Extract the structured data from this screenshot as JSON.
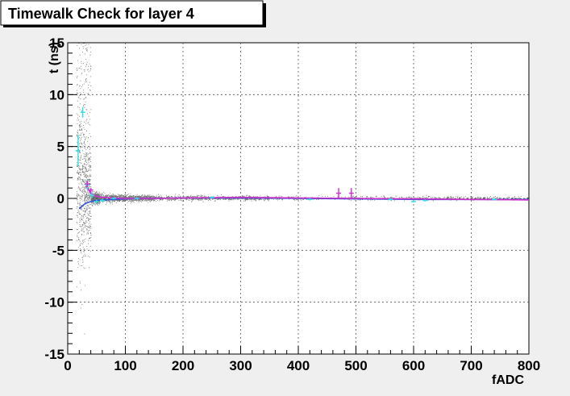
{
  "chart_data": {
    "type": "scatter",
    "title": "Timewalk Check for layer 4",
    "xlabel": "fADC",
    "ylabel": "t (ns)",
    "xlim": [
      0,
      800
    ],
    "ylim": [
      -15,
      15
    ],
    "xticks": [
      0,
      100,
      200,
      300,
      400,
      500,
      600,
      700,
      800
    ],
    "yticks": [
      -15,
      -10,
      -5,
      0,
      5,
      10,
      15
    ],
    "grid": true,
    "colors": {
      "scatter": "#000000",
      "profile_cyan": "#33e0e8",
      "profile_magenta": "#d52bd5",
      "fit_blue": "#2f4fd6",
      "fit_magenta": "#cc33cc"
    },
    "series": [
      {
        "style": "cyan-profile-markers",
        "points": [
          {
            "x": 18,
            "y": 4.6,
            "err": 1.5
          },
          {
            "x": 26,
            "y": 8.3,
            "err": 0.5
          },
          {
            "x": 34,
            "y": 1.3,
            "err": 0.5
          },
          {
            "x": 42,
            "y": 0.3,
            "err": 0.3
          },
          {
            "x": 50,
            "y": -0.3,
            "err": 0.2
          },
          {
            "x": 60,
            "y": -0.2,
            "err": 0.15
          },
          {
            "x": 80,
            "y": 0.0,
            "err": 0.1
          },
          {
            "x": 120,
            "y": 0.0,
            "err": 0.1
          },
          {
            "x": 250,
            "y": 0.1,
            "err": 0.1
          },
          {
            "x": 420,
            "y": -0.1,
            "err": 0.1
          },
          {
            "x": 560,
            "y": -0.1,
            "err": 0.1
          },
          {
            "x": 600,
            "y": -0.3,
            "err": 0.1
          },
          {
            "x": 620,
            "y": -0.2,
            "err": 0.1
          },
          {
            "x": 740,
            "y": -0.1,
            "err": 0.1
          }
        ]
      },
      {
        "style": "magenta-profile-markers",
        "points": [
          {
            "x": 34,
            "y": 1.4,
            "err": 0.3
          },
          {
            "x": 40,
            "y": 0.8,
            "err": 0.2
          },
          {
            "x": 470,
            "y": 0.5,
            "err": 0.5
          },
          {
            "x": 492,
            "y": 0.5,
            "err": 0.5
          }
        ]
      },
      {
        "style": "blue-fit-curve",
        "x": [
          20,
          30,
          40,
          50,
          60,
          80,
          100,
          150,
          200,
          300,
          400,
          500,
          600,
          700,
          800
        ],
        "y": [
          -1.0,
          -0.5,
          -0.3,
          -0.2,
          -0.15,
          -0.1,
          -0.05,
          0.0,
          0.05,
          0.05,
          0.0,
          -0.05,
          -0.1,
          -0.1,
          -0.1
        ]
      },
      {
        "style": "magenta-fit-curve",
        "x": [
          32,
          40,
          50,
          60,
          80,
          100,
          150,
          200,
          300,
          400,
          500,
          600,
          700,
          800
        ],
        "y": [
          1.2,
          0.5,
          0.2,
          0.1,
          0.05,
          0.0,
          0.0,
          0.05,
          0.1,
          0.05,
          0.0,
          -0.05,
          -0.1,
          -0.15
        ]
      }
    ]
  }
}
